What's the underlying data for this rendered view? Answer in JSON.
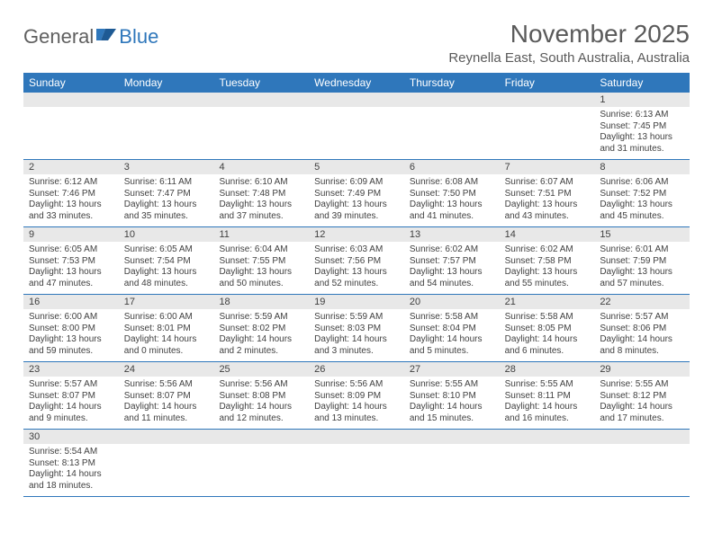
{
  "brand": {
    "general": "General",
    "blue": "Blue"
  },
  "title": "November 2025",
  "location": "Reynella East, South Australia, Australia",
  "weekdays": [
    "Sunday",
    "Monday",
    "Tuesday",
    "Wednesday",
    "Thursday",
    "Friday",
    "Saturday"
  ],
  "colors": {
    "header_bg": "#2f77bb",
    "daynum_bg": "#e8e8e8",
    "text": "#404040",
    "rule": "#2f77bb"
  },
  "weeks": [
    {
      "nums": [
        "",
        "",
        "",
        "",
        "",
        "",
        "1"
      ],
      "days": [
        null,
        null,
        null,
        null,
        null,
        null,
        {
          "sunrise": "Sunrise: 6:13 AM",
          "sunset": "Sunset: 7:45 PM",
          "daylight1": "Daylight: 13 hours",
          "daylight2": "and 31 minutes."
        }
      ]
    },
    {
      "nums": [
        "2",
        "3",
        "4",
        "5",
        "6",
        "7",
        "8"
      ],
      "days": [
        {
          "sunrise": "Sunrise: 6:12 AM",
          "sunset": "Sunset: 7:46 PM",
          "daylight1": "Daylight: 13 hours",
          "daylight2": "and 33 minutes."
        },
        {
          "sunrise": "Sunrise: 6:11 AM",
          "sunset": "Sunset: 7:47 PM",
          "daylight1": "Daylight: 13 hours",
          "daylight2": "and 35 minutes."
        },
        {
          "sunrise": "Sunrise: 6:10 AM",
          "sunset": "Sunset: 7:48 PM",
          "daylight1": "Daylight: 13 hours",
          "daylight2": "and 37 minutes."
        },
        {
          "sunrise": "Sunrise: 6:09 AM",
          "sunset": "Sunset: 7:49 PM",
          "daylight1": "Daylight: 13 hours",
          "daylight2": "and 39 minutes."
        },
        {
          "sunrise": "Sunrise: 6:08 AM",
          "sunset": "Sunset: 7:50 PM",
          "daylight1": "Daylight: 13 hours",
          "daylight2": "and 41 minutes."
        },
        {
          "sunrise": "Sunrise: 6:07 AM",
          "sunset": "Sunset: 7:51 PM",
          "daylight1": "Daylight: 13 hours",
          "daylight2": "and 43 minutes."
        },
        {
          "sunrise": "Sunrise: 6:06 AM",
          "sunset": "Sunset: 7:52 PM",
          "daylight1": "Daylight: 13 hours",
          "daylight2": "and 45 minutes."
        }
      ]
    },
    {
      "nums": [
        "9",
        "10",
        "11",
        "12",
        "13",
        "14",
        "15"
      ],
      "days": [
        {
          "sunrise": "Sunrise: 6:05 AM",
          "sunset": "Sunset: 7:53 PM",
          "daylight1": "Daylight: 13 hours",
          "daylight2": "and 47 minutes."
        },
        {
          "sunrise": "Sunrise: 6:05 AM",
          "sunset": "Sunset: 7:54 PM",
          "daylight1": "Daylight: 13 hours",
          "daylight2": "and 48 minutes."
        },
        {
          "sunrise": "Sunrise: 6:04 AM",
          "sunset": "Sunset: 7:55 PM",
          "daylight1": "Daylight: 13 hours",
          "daylight2": "and 50 minutes."
        },
        {
          "sunrise": "Sunrise: 6:03 AM",
          "sunset": "Sunset: 7:56 PM",
          "daylight1": "Daylight: 13 hours",
          "daylight2": "and 52 minutes."
        },
        {
          "sunrise": "Sunrise: 6:02 AM",
          "sunset": "Sunset: 7:57 PM",
          "daylight1": "Daylight: 13 hours",
          "daylight2": "and 54 minutes."
        },
        {
          "sunrise": "Sunrise: 6:02 AM",
          "sunset": "Sunset: 7:58 PM",
          "daylight1": "Daylight: 13 hours",
          "daylight2": "and 55 minutes."
        },
        {
          "sunrise": "Sunrise: 6:01 AM",
          "sunset": "Sunset: 7:59 PM",
          "daylight1": "Daylight: 13 hours",
          "daylight2": "and 57 minutes."
        }
      ]
    },
    {
      "nums": [
        "16",
        "17",
        "18",
        "19",
        "20",
        "21",
        "22"
      ],
      "days": [
        {
          "sunrise": "Sunrise: 6:00 AM",
          "sunset": "Sunset: 8:00 PM",
          "daylight1": "Daylight: 13 hours",
          "daylight2": "and 59 minutes."
        },
        {
          "sunrise": "Sunrise: 6:00 AM",
          "sunset": "Sunset: 8:01 PM",
          "daylight1": "Daylight: 14 hours",
          "daylight2": "and 0 minutes."
        },
        {
          "sunrise": "Sunrise: 5:59 AM",
          "sunset": "Sunset: 8:02 PM",
          "daylight1": "Daylight: 14 hours",
          "daylight2": "and 2 minutes."
        },
        {
          "sunrise": "Sunrise: 5:59 AM",
          "sunset": "Sunset: 8:03 PM",
          "daylight1": "Daylight: 14 hours",
          "daylight2": "and 3 minutes."
        },
        {
          "sunrise": "Sunrise: 5:58 AM",
          "sunset": "Sunset: 8:04 PM",
          "daylight1": "Daylight: 14 hours",
          "daylight2": "and 5 minutes."
        },
        {
          "sunrise": "Sunrise: 5:58 AM",
          "sunset": "Sunset: 8:05 PM",
          "daylight1": "Daylight: 14 hours",
          "daylight2": "and 6 minutes."
        },
        {
          "sunrise": "Sunrise: 5:57 AM",
          "sunset": "Sunset: 8:06 PM",
          "daylight1": "Daylight: 14 hours",
          "daylight2": "and 8 minutes."
        }
      ]
    },
    {
      "nums": [
        "23",
        "24",
        "25",
        "26",
        "27",
        "28",
        "29"
      ],
      "days": [
        {
          "sunrise": "Sunrise: 5:57 AM",
          "sunset": "Sunset: 8:07 PM",
          "daylight1": "Daylight: 14 hours",
          "daylight2": "and 9 minutes."
        },
        {
          "sunrise": "Sunrise: 5:56 AM",
          "sunset": "Sunset: 8:07 PM",
          "daylight1": "Daylight: 14 hours",
          "daylight2": "and 11 minutes."
        },
        {
          "sunrise": "Sunrise: 5:56 AM",
          "sunset": "Sunset: 8:08 PM",
          "daylight1": "Daylight: 14 hours",
          "daylight2": "and 12 minutes."
        },
        {
          "sunrise": "Sunrise: 5:56 AM",
          "sunset": "Sunset: 8:09 PM",
          "daylight1": "Daylight: 14 hours",
          "daylight2": "and 13 minutes."
        },
        {
          "sunrise": "Sunrise: 5:55 AM",
          "sunset": "Sunset: 8:10 PM",
          "daylight1": "Daylight: 14 hours",
          "daylight2": "and 15 minutes."
        },
        {
          "sunrise": "Sunrise: 5:55 AM",
          "sunset": "Sunset: 8:11 PM",
          "daylight1": "Daylight: 14 hours",
          "daylight2": "and 16 minutes."
        },
        {
          "sunrise": "Sunrise: 5:55 AM",
          "sunset": "Sunset: 8:12 PM",
          "daylight1": "Daylight: 14 hours",
          "daylight2": "and 17 minutes."
        }
      ]
    },
    {
      "nums": [
        "30",
        "",
        "",
        "",
        "",
        "",
        ""
      ],
      "days": [
        {
          "sunrise": "Sunrise: 5:54 AM",
          "sunset": "Sunset: 8:13 PM",
          "daylight1": "Daylight: 14 hours",
          "daylight2": "and 18 minutes."
        },
        null,
        null,
        null,
        null,
        null,
        null
      ]
    }
  ]
}
